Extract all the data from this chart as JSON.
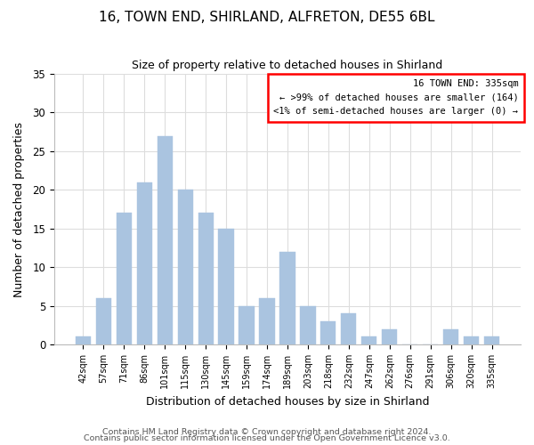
{
  "title": "16, TOWN END, SHIRLAND, ALFRETON, DE55 6BL",
  "subtitle": "Size of property relative to detached houses in Shirland",
  "xlabel": "Distribution of detached houses by size in Shirland",
  "ylabel": "Number of detached properties",
  "bar_color": "#aac4e0",
  "bar_edgecolor": "#aac4e0",
  "categories": [
    "42sqm",
    "57sqm",
    "71sqm",
    "86sqm",
    "101sqm",
    "115sqm",
    "130sqm",
    "145sqm",
    "159sqm",
    "174sqm",
    "189sqm",
    "203sqm",
    "218sqm",
    "232sqm",
    "247sqm",
    "262sqm",
    "276sqm",
    "291sqm",
    "306sqm",
    "320sqm",
    "335sqm"
  ],
  "values": [
    1,
    6,
    17,
    21,
    27,
    20,
    17,
    15,
    5,
    6,
    12,
    5,
    3,
    4,
    1,
    2,
    0,
    0,
    2,
    1,
    1
  ],
  "ylim": [
    0,
    35
  ],
  "yticks": [
    0,
    5,
    10,
    15,
    20,
    25,
    30,
    35
  ],
  "legend_title": "16 TOWN END: 335sqm",
  "legend_line1": "← >99% of detached houses are smaller (164)",
  "legend_line2": "<1% of semi-detached houses are larger (0) →",
  "footer_line1": "Contains HM Land Registry data © Crown copyright and database right 2024.",
  "footer_line2": "Contains public sector information licensed under the Open Government Licence v3.0.",
  "background_color": "#ffffff",
  "grid_color": "#dddddd"
}
